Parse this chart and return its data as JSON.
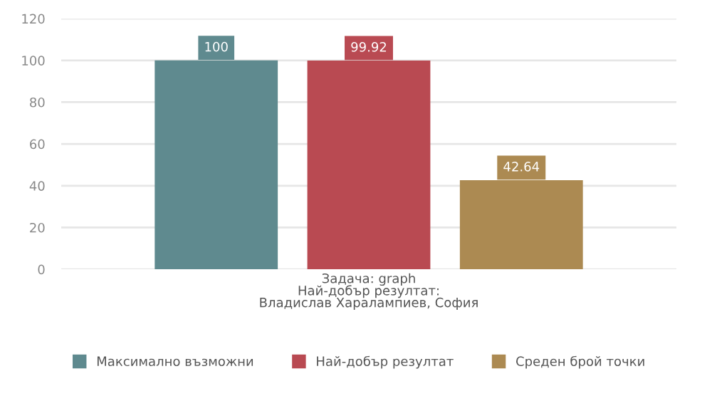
{
  "chart_data": {
    "type": "bar",
    "categories": [
      "Задача: graph\nНай-добър резултат:\nВладислав Харалампиев, София"
    ],
    "series": [
      {
        "name": "Максимално възможни",
        "color": "#5f8a8f",
        "values": [
          100
        ]
      },
      {
        "name": "Най-добър резултат",
        "color": "#b94a52",
        "values": [
          99.92
        ]
      },
      {
        "name": "Среден брой точки",
        "color": "#ac8a52",
        "values": [
          42.64
        ]
      }
    ],
    "ylim": [
      0,
      120
    ],
    "yticks": [
      0,
      20,
      40,
      60,
      80,
      100,
      120
    ],
    "grid": "y",
    "legend": "bottom",
    "data_labels": true
  }
}
